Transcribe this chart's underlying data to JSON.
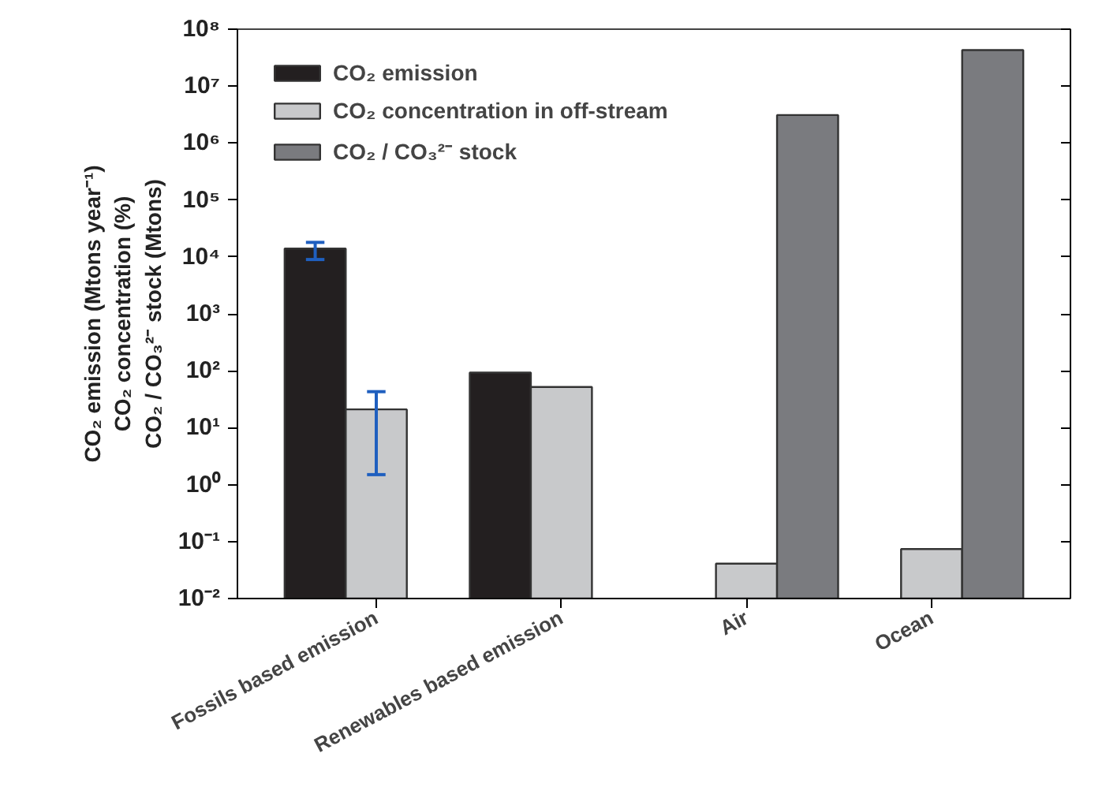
{
  "chart_data": {
    "type": "bar",
    "log": true,
    "ylabel": "CO₂ emission (Mtons year⁻¹)\nCO₂ concentration (%)\nCO₂ / CO₃²⁻ stock (Mtons)",
    "categories": [
      "Fossils based emission",
      "Renewables based emission",
      "Air",
      "Ocean"
    ],
    "series": [
      {
        "name": "CO₂ emission",
        "color": "#231f20",
        "values": [
          14000,
          93,
          null,
          null
        ],
        "errors": [
          [
            9000,
            18000
          ],
          null,
          null,
          null
        ]
      },
      {
        "name": "CO₂ concentration in off-stream",
        "color": "#c8c9cb",
        "values": [
          21,
          52,
          0.041,
          0.074
        ],
        "errors": [
          [
            1.5,
            43
          ],
          null,
          null,
          null
        ]
      },
      {
        "name": "CO₂ / CO₃²⁻ stock",
        "color": "#7a7b7f",
        "values": [
          null,
          null,
          3100000,
          43000000
        ]
      }
    ],
    "ylim": [
      0.01,
      100000000
    ],
    "yticks": [
      {
        "value": 0.01,
        "label": "10⁻²"
      },
      {
        "value": 0.1,
        "label": "10⁻¹"
      },
      {
        "value": 1,
        "label": "10⁰"
      },
      {
        "value": 10,
        "label": "10¹"
      },
      {
        "value": 100,
        "label": "10²"
      },
      {
        "value": 1000,
        "label": "10³"
      },
      {
        "value": 10000,
        "label": "10⁴"
      },
      {
        "value": 100000,
        "label": "10⁵"
      },
      {
        "value": 1000000,
        "label": "10⁶"
      },
      {
        "value": 10000000,
        "label": "10⁷"
      },
      {
        "value": 100000000,
        "label": "10⁸"
      }
    ],
    "grid": false,
    "legend": "top left"
  }
}
